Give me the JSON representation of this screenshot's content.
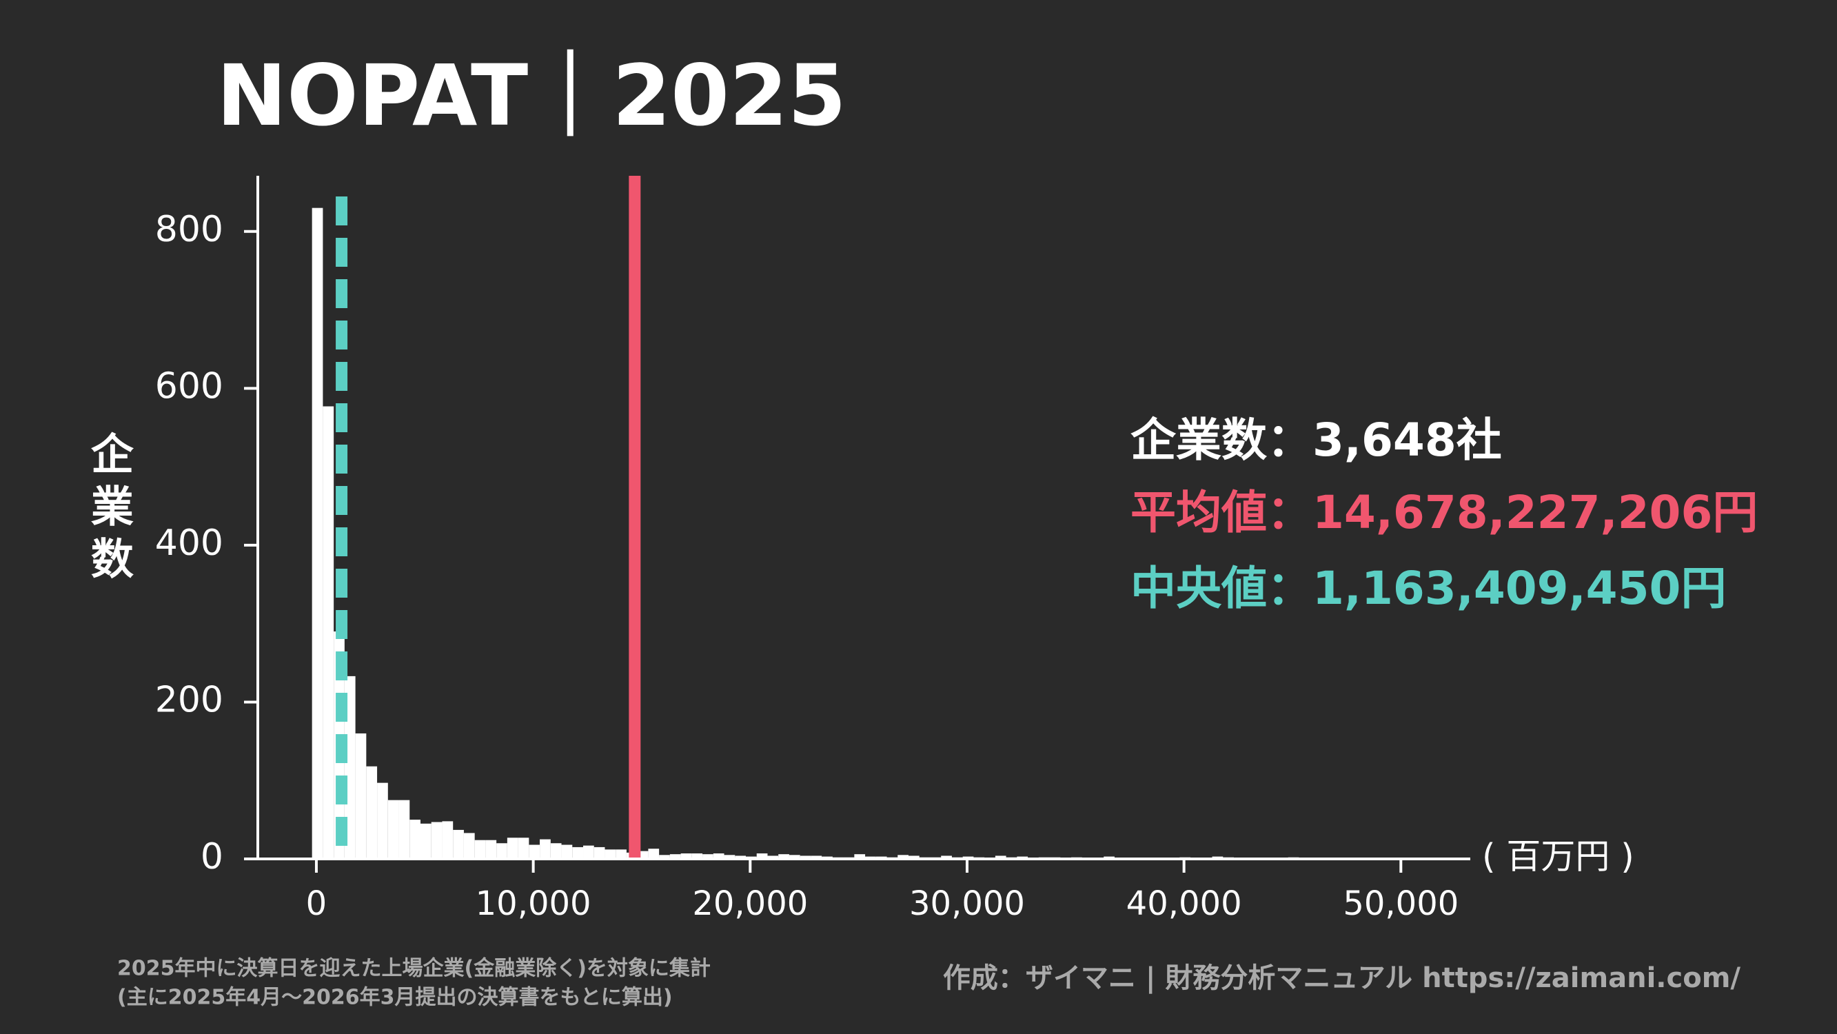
{
  "chart_data": {
    "type": "histogram",
    "title": "NOPAT｜2025",
    "y_label": "企業数",
    "x_unit": "( 百万円 )",
    "bins": [
      -200,
      300,
      800,
      1300,
      1800,
      2300,
      2800,
      3300,
      3800,
      4300,
      4800,
      5300,
      5800,
      6300,
      6800,
      7300,
      7800,
      8300,
      8800,
      9300,
      9800,
      10300,
      10800,
      11300,
      11800,
      12300,
      12800,
      13300,
      13800,
      14300,
      14800,
      15300,
      15800,
      16300,
      16800,
      17300,
      17800,
      18300,
      18800,
      19300,
      19800,
      20300,
      20800,
      21300,
      21800,
      22300,
      22800,
      23300,
      23800,
      24300,
      24800,
      25300,
      25800,
      26300,
      26800,
      27300,
      27800,
      28300,
      28800,
      29300,
      29800,
      30300,
      30800,
      31300,
      31800,
      32300,
      32800,
      33300,
      33800,
      34300,
      34800,
      35300,
      35800,
      36300,
      36800,
      37300,
      37800,
      38300,
      38800,
      39300,
      39800,
      40300,
      40800,
      41300,
      41800,
      42300,
      42800,
      43300,
      43800,
      44300,
      44800,
      45300,
      45800,
      46300,
      46800,
      47300,
      47800,
      48300,
      48800,
      49300,
      49800,
      50300,
      50800,
      51300,
      51800
    ],
    "values": [
      830,
      577,
      290,
      233,
      160,
      118,
      97,
      75,
      75,
      50,
      45,
      47,
      48,
      37,
      33,
      24,
      24,
      20,
      27,
      27,
      18,
      25,
      20,
      18,
      15,
      17,
      15,
      12,
      12,
      8,
      10,
      13,
      5,
      6,
      7,
      7,
      6,
      7,
      5,
      4,
      3,
      7,
      4,
      6,
      5,
      4,
      4,
      3,
      2,
      2,
      6,
      3,
      3,
      2,
      5,
      4,
      2,
      2,
      4,
      2,
      3,
      2,
      1,
      4,
      2,
      3,
      1,
      2,
      2,
      1,
      2,
      1,
      1,
      3,
      1,
      1,
      0,
      1,
      1,
      0,
      2,
      1,
      0,
      3,
      2,
      1,
      0,
      1,
      1,
      0,
      2,
      1,
      0,
      1,
      0,
      0,
      1,
      0,
      0,
      0,
      0,
      1,
      0,
      0
    ],
    "color": "#ffffff",
    "xlim": [
      -2700,
      53200
    ],
    "ylim": [
      0,
      871
    ],
    "xticks": [
      0,
      {
        "value": 10000,
        "label": "10,000"
      },
      {
        "value": 20000,
        "label": "20,000"
      },
      {
        "value": 30000,
        "label": "30,000"
      },
      {
        "value": 40000,
        "label": "40,000"
      },
      {
        "value": 50000,
        "label": "50,000"
      }
    ],
    "yticks": [
      0,
      200,
      400,
      600,
      800
    ],
    "count_label": "企業数：3,648社",
    "mean": {
      "value": 14678.227206,
      "label": "平均値：14,678,227,206円",
      "color": "#f0566e"
    },
    "median": {
      "value": 1163.40945,
      "label": "中央値：1,163,409,450円",
      "color": "#5ccfc4"
    },
    "footnotes": [
      "2025年中に決算日を迎えた上場企業(金融業除く)を対象に集計",
      "(主に2025年4月〜2026年3月提出の決算書をもとに算出)"
    ],
    "credit": "作成：ザイマニ | 財務分析マニュアル https://zaimani.com/"
  }
}
